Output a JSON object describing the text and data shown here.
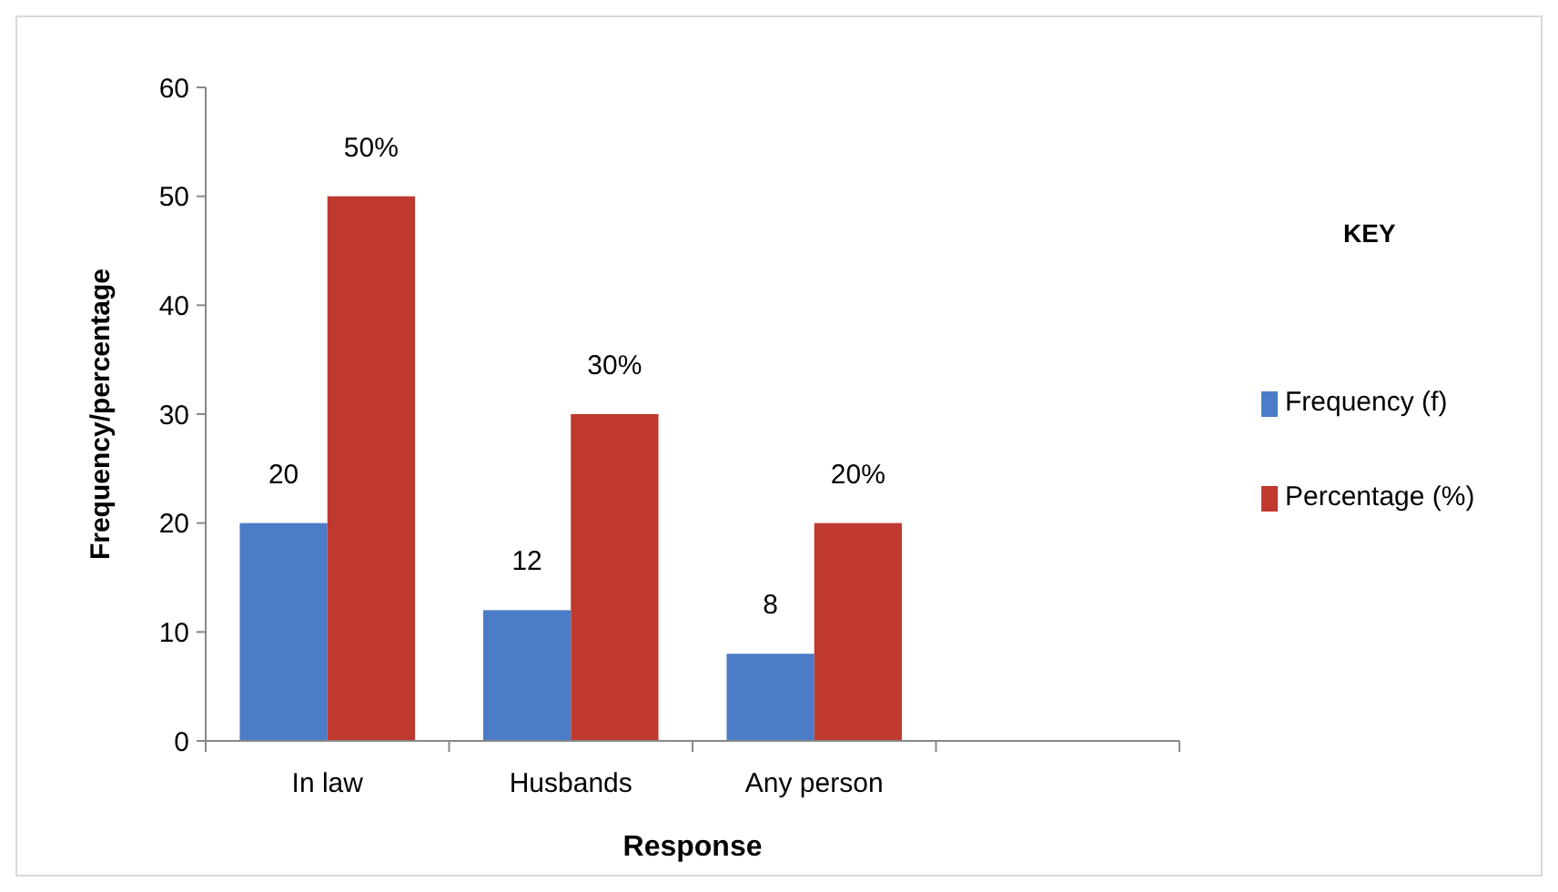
{
  "chart_data": {
    "type": "bar",
    "xlabel": "Response",
    "ylabel": "Frequency/percentage",
    "legend_title": "KEY",
    "categories": [
      "In law",
      "Husbands",
      "Any person",
      null
    ],
    "series": [
      {
        "name": "Frequency (f)",
        "color": "#4a7cc7",
        "values": [
          20,
          12,
          8,
          null
        ],
        "value_labels": [
          "20",
          "12",
          "8",
          null
        ]
      },
      {
        "name": "Percentage (%)",
        "color": "#c0392f",
        "values": [
          50,
          30,
          20,
          null
        ],
        "value_labels": [
          "50%",
          "30%",
          "20%",
          null
        ]
      }
    ],
    "ylim": [
      0,
      60
    ],
    "yticks": [
      0,
      10,
      20,
      30,
      40,
      50,
      60
    ],
    "grid": false,
    "legend": "right"
  }
}
